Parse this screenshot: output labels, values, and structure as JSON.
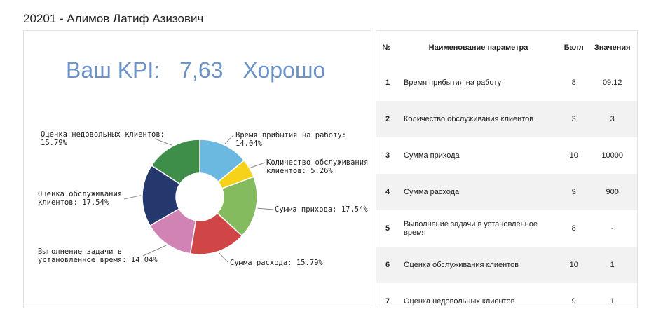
{
  "header": {
    "title": "20201 - Алимов Латиф Азизович"
  },
  "kpi": {
    "label": "Ваш KPI:",
    "value": "7,63",
    "rating": "Хорошо"
  },
  "colors": {
    "accent": "#6b93c8",
    "slices": [
      "#6bb8e0",
      "#f7d21a",
      "#84bb5e",
      "#d04545",
      "#d283b6",
      "#24386e",
      "#3e8e4a"
    ]
  },
  "chart_data": {
    "type": "pie",
    "subtype": "donut",
    "slices": [
      {
        "label_lines": [
          "Время прибытия на работу:",
          "14.04%"
        ],
        "value": 14.04
      },
      {
        "label_lines": [
          "Количество обслуживания",
          "клиентов: 5.26%"
        ],
        "value": 5.26
      },
      {
        "label_lines": [
          "Сумма прихода: 17.54%"
        ],
        "value": 17.54
      },
      {
        "label_lines": [
          "Сумма расхода: 15.79%"
        ],
        "value": 15.79
      },
      {
        "label_lines": [
          "Выполнение задачи в",
          "установленное время: 14.04%"
        ],
        "value": 14.04
      },
      {
        "label_lines": [
          "Оценка обслуживания",
          "клиентов: 17.54%"
        ],
        "value": 17.54
      },
      {
        "label_lines": [
          "Оценка недовольных клиентов:",
          "15.79%"
        ],
        "value": 15.79
      }
    ]
  },
  "table": {
    "headers": {
      "num": "№",
      "name": "Наименование параметра",
      "score": "Балл",
      "value": "Значения"
    },
    "rows": [
      {
        "num": "1",
        "name": "Время прибытия на работу",
        "score": "8",
        "value": "09:12"
      },
      {
        "num": "2",
        "name": "Количество обслуживания клиентов",
        "score": "3",
        "value": "3"
      },
      {
        "num": "3",
        "name": "Сумма прихода",
        "score": "10",
        "value": "10000"
      },
      {
        "num": "4",
        "name": "Сумма расхода",
        "score": "9",
        "value": "900"
      },
      {
        "num": "5",
        "name": "Выполнение задачи в установленное время",
        "score": "8",
        "value": "-"
      },
      {
        "num": "6",
        "name": "Оценка обслуживания клиентов",
        "score": "10",
        "value": "1"
      },
      {
        "num": "7",
        "name": "Оценка недовольных клиентов",
        "score": "9",
        "value": "1"
      }
    ]
  }
}
